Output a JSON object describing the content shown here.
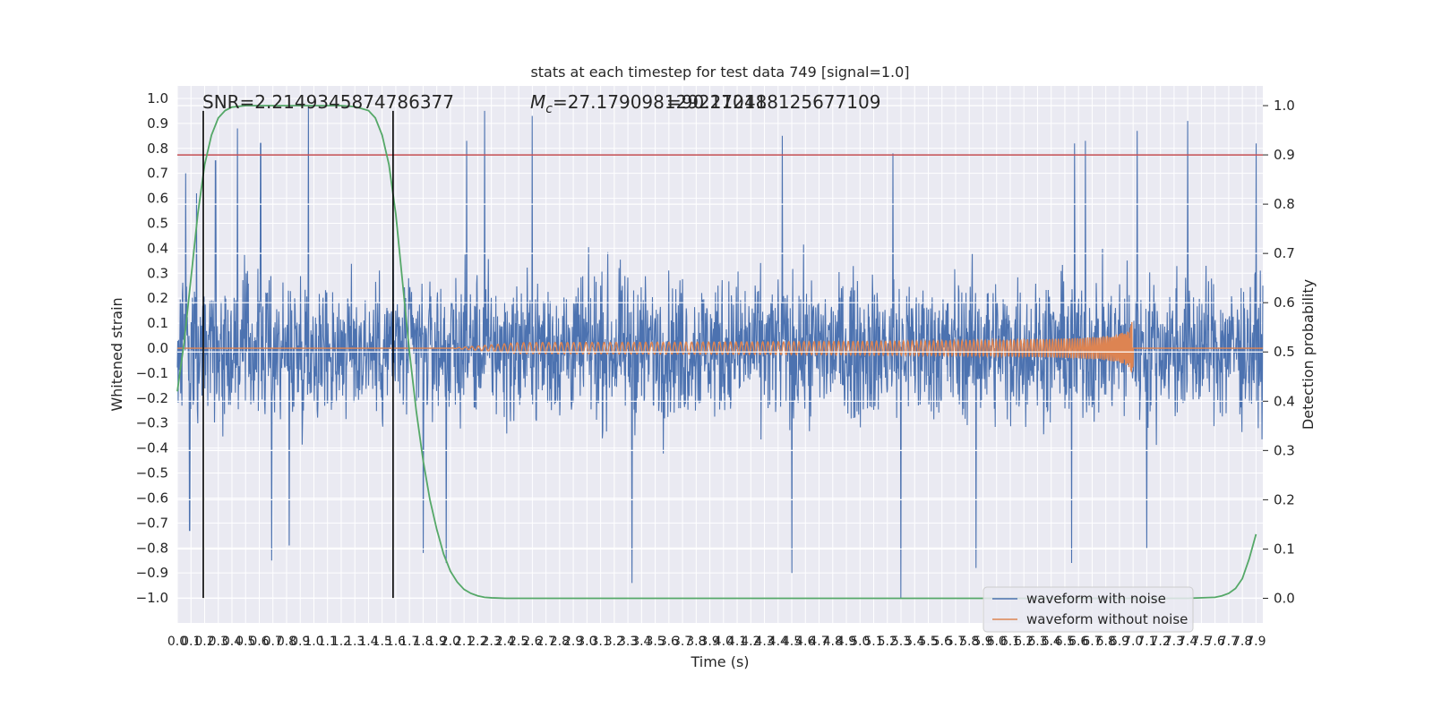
{
  "chart_data": {
    "type": "line",
    "title": "stats at each timestep for test data 749 [signal=1.0]",
    "xlabel": "Time (s)",
    "ylabel": "Whitened strain",
    "y2label": "Detection probability",
    "xlim": [
      0.0,
      7.95
    ],
    "ylim": [
      -1.1,
      1.05
    ],
    "y2lim": [
      -0.05,
      1.04
    ],
    "x_tick_values": [
      0.0,
      0.1,
      0.2,
      0.3,
      0.4,
      0.5,
      0.6,
      0.7,
      0.8,
      0.9,
      1.0,
      1.1,
      1.2,
      1.3,
      1.4,
      1.5,
      1.6,
      1.7,
      1.8,
      1.9,
      2.0,
      2.1,
      2.2,
      2.3,
      2.4,
      2.5,
      2.6,
      2.7,
      2.8,
      2.9,
      3.0,
      3.1,
      3.2,
      3.3,
      3.4,
      3.5,
      3.6,
      3.7,
      3.8,
      3.9,
      4.0,
      4.1,
      4.2,
      4.3,
      4.4,
      4.5,
      4.6,
      4.7,
      4.8,
      4.9,
      5.0,
      5.1,
      5.2,
      5.3,
      5.4,
      5.5,
      5.6,
      5.7,
      5.8,
      5.9,
      6.0,
      6.1,
      6.2,
      6.3,
      6.4,
      6.5,
      6.6,
      6.7,
      6.8,
      6.9,
      7.0,
      7.1,
      7.2,
      7.3,
      7.4,
      7.5,
      7.6,
      7.7,
      7.8,
      7.9
    ],
    "x_tick_labels": [
      "0.0",
      "0.1",
      "0.2",
      "0.3",
      "0.4",
      "0.5",
      "0.6",
      "0.7",
      "0.8",
      "0.9",
      "1.0",
      "1.1",
      "1.2",
      "1.3",
      "1.4",
      "1.5",
      "1.6",
      "1.7",
      "1.8",
      "1.9",
      "2.0",
      "2.1",
      "2.2",
      "2.3",
      "2.4",
      "2.5",
      "2.6",
      "2.7",
      "2.8",
      "2.9",
      "3.0",
      "3.1",
      "3.2",
      "3.3",
      "3.4",
      "3.5",
      "3.6",
      "3.7",
      "3.8",
      "3.9",
      "4.0",
      "4.1",
      "4.2",
      "4.3",
      "4.4",
      "4.5",
      "4.6",
      "4.7",
      "4.8",
      "4.9",
      "5.0",
      "5.1",
      "5.2",
      "5.3",
      "5.4",
      "5.5",
      "5.6",
      "5.7",
      "5.8",
      "5.9",
      "6.0",
      "6.1",
      "6.2",
      "6.3",
      "6.4",
      "6.5",
      "6.6",
      "6.7",
      "6.8",
      "6.9",
      "7.0",
      "7.1",
      "7.2",
      "7.3",
      "7.4",
      "7.5",
      "7.6",
      "7.7",
      "7.8",
      "7.9"
    ],
    "y_tick_values": [
      -1.0,
      -0.9,
      -0.8,
      -0.7,
      -0.6,
      -0.5,
      -0.4,
      -0.3,
      -0.2,
      -0.1,
      0.0,
      0.1,
      0.2,
      0.3,
      0.4,
      0.5,
      0.6,
      0.7,
      0.8,
      0.9,
      1.0
    ],
    "y_tick_labels": [
      "−1.0",
      "−0.9",
      "−0.8",
      "−0.7",
      "−0.6",
      "−0.5",
      "−0.4",
      "−0.3",
      "−0.2",
      "−0.1",
      "0.0",
      "0.1",
      "0.2",
      "0.3",
      "0.4",
      "0.5",
      "0.6",
      "0.7",
      "0.8",
      "0.9",
      "1.0"
    ],
    "y2_tick_values": [
      0.0,
      0.1,
      0.2,
      0.3,
      0.4,
      0.5,
      0.6,
      0.7,
      0.8,
      0.9,
      1.0
    ],
    "y2_tick_labels": [
      "0.0",
      "0.1",
      "0.2",
      "0.3",
      "0.4",
      "0.5",
      "0.6",
      "0.7",
      "0.8",
      "0.9",
      "1.0"
    ],
    "annotations": {
      "snr": "SNR=2.2149345874786377",
      "mc_prefix": "M",
      "mc_sub": "c",
      "mc_value": "=27.179098129211248",
      "overlap": "=90.270118125677109"
    },
    "series": [
      {
        "name": "waveform with noise",
        "color": "#4c72b0",
        "x_range": [
          0.0,
          7.95
        ],
        "typical_amplitude": 0.4,
        "spike_peaks": [
          {
            "x": 0.06,
            "y": 0.7
          },
          {
            "x": 0.14,
            "y": 0.62
          },
          {
            "x": 0.28,
            "y": 0.75
          },
          {
            "x": 0.44,
            "y": 0.88
          },
          {
            "x": 0.61,
            "y": 0.82
          },
          {
            "x": 0.96,
            "y": 0.97
          },
          {
            "x": 1.58,
            "y": 0.45
          },
          {
            "x": 2.12,
            "y": 0.83
          },
          {
            "x": 2.25,
            "y": 0.95
          },
          {
            "x": 2.6,
            "y": 0.93
          },
          {
            "x": 4.43,
            "y": 0.85
          },
          {
            "x": 5.24,
            "y": 0.78
          },
          {
            "x": 6.57,
            "y": 0.82
          },
          {
            "x": 6.65,
            "y": 0.83
          },
          {
            "x": 7.03,
            "y": 0.87
          },
          {
            "x": 7.4,
            "y": 0.91
          },
          {
            "x": 7.9,
            "y": 0.82
          },
          {
            "x": 0.09,
            "y": -0.73
          },
          {
            "x": 0.69,
            "y": -0.85
          },
          {
            "x": 0.82,
            "y": -0.79
          },
          {
            "x": 1.8,
            "y": -0.82
          },
          {
            "x": 1.97,
            "y": -0.86
          },
          {
            "x": 3.33,
            "y": -0.94
          },
          {
            "x": 4.5,
            "y": -0.9
          },
          {
            "x": 5.3,
            "y": -1.0
          },
          {
            "x": 5.85,
            "y": -0.88
          },
          {
            "x": 6.55,
            "y": -0.86
          },
          {
            "x": 7.1,
            "y": -0.8
          }
        ]
      },
      {
        "name": "waveform without noise",
        "color": "#dd8452",
        "chirp_start": 2.0,
        "chirp_end": 7.0,
        "peak_amplitude": 0.13
      },
      {
        "color": "#55a868",
        "axis": "right",
        "x": [
          0.0,
          0.05,
          0.1,
          0.15,
          0.2,
          0.25,
          0.3,
          0.35,
          0.4,
          0.5,
          0.6,
          0.7,
          0.8,
          0.9,
          1.0,
          1.1,
          1.2,
          1.3,
          1.4,
          1.45,
          1.5,
          1.55,
          1.6,
          1.65,
          1.7,
          1.75,
          1.8,
          1.85,
          1.9,
          1.95,
          2.0,
          2.05,
          2.1,
          2.15,
          2.2,
          2.25,
          2.3,
          2.4,
          2.5,
          2.6,
          2.8,
          3.0,
          4.0,
          5.0,
          6.0,
          7.0,
          7.4,
          7.6,
          7.65,
          7.7,
          7.75,
          7.8,
          7.85,
          7.9
        ],
        "y": [
          0.42,
          0.52,
          0.65,
          0.78,
          0.88,
          0.94,
          0.975,
          0.99,
          0.997,
          1.0,
          1.0,
          1.0,
          1.0,
          1.0,
          1.0,
          1.0,
          1.0,
          0.998,
          0.99,
          0.975,
          0.94,
          0.88,
          0.78,
          0.64,
          0.5,
          0.38,
          0.28,
          0.2,
          0.14,
          0.09,
          0.055,
          0.033,
          0.018,
          0.01,
          0.005,
          0.002,
          0.001,
          0.0,
          0.0,
          0.0,
          0.0,
          0.0,
          0.0,
          0.0,
          0.0,
          0.0,
          0.0,
          0.002,
          0.005,
          0.01,
          0.02,
          0.04,
          0.08,
          0.13
        ]
      }
    ],
    "hlines": [
      {
        "y": 0.9,
        "axis": "right",
        "color": "#c44e52"
      }
    ],
    "vlines": [
      {
        "x": 0.19,
        "color": "#000000",
        "ymin": -1.0,
        "ymax": 0.95
      },
      {
        "x": 1.58,
        "color": "#000000",
        "ymin": -1.0,
        "ymax": 0.95
      }
    ],
    "legend": {
      "location": "lower right",
      "entries": [
        {
          "label": "waveform with noise",
          "color": "#4c72b0"
        },
        {
          "label": "waveform without noise",
          "color": "#dd8452"
        }
      ]
    },
    "grid": true
  }
}
